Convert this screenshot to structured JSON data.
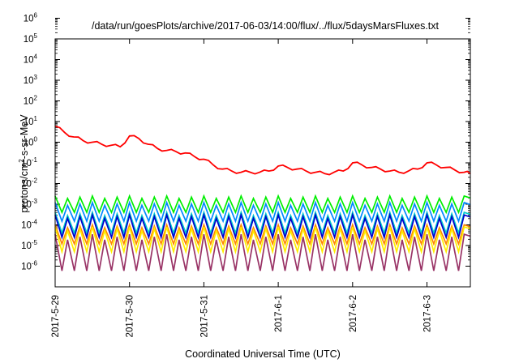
{
  "chart_data": {
    "type": "line",
    "title": "/data/run/goesPlots/archive/2017-06-03/14:00/flux/../flux/5daysMarsFluxes.txt",
    "xlabel": "Coordinated Universal Time (UTC)",
    "ylabel": {
      "prefix": "protons/cm",
      "sup": "2",
      "suffix": "-s-sr-MeV"
    },
    "y_scale": "log",
    "ylim": [
      "1e-6",
      "1e6"
    ],
    "y_ticks": [
      {
        "base": "10",
        "exp": "6"
      },
      {
        "base": "10",
        "exp": "5"
      },
      {
        "base": "10",
        "exp": "4"
      },
      {
        "base": "10",
        "exp": "3"
      },
      {
        "base": "10",
        "exp": "2"
      },
      {
        "base": "10",
        "exp": "1"
      },
      {
        "base": "10",
        "exp": "0"
      },
      {
        "base": "10",
        "exp": "-1"
      },
      {
        "base": "10",
        "exp": "-2"
      },
      {
        "base": "10",
        "exp": "-3"
      },
      {
        "base": "10",
        "exp": "-4"
      },
      {
        "base": "10",
        "exp": "-5"
      },
      {
        "base": "10",
        "exp": "-6"
      }
    ],
    "xlim": [
      "2017-05-29 00:00",
      "2017-06-03 14:00"
    ],
    "x_ticks": [
      "2017-5-29",
      "2017-5-30",
      "2017-5-31",
      "2017-6-1",
      "2017-6-2",
      "2017-6-3"
    ],
    "grid": false,
    "series": [
      {
        "color": "#ff0000",
        "x": [
          "2017-05-29 00:00",
          "2017-05-29 03:00",
          "2017-05-29 06:00",
          "2017-05-29 09:00",
          "2017-05-29 12:00",
          "2017-05-29 15:00",
          "2017-05-29 18:00",
          "2017-05-29 21:00",
          "2017-05-30 00:00",
          "2017-05-30 03:00",
          "2017-05-30 06:00",
          "2017-05-30 09:00",
          "2017-05-30 12:00",
          "2017-05-30 15:00",
          "2017-05-30 18:00",
          "2017-05-30 21:00",
          "2017-05-31 00:00",
          "2017-05-31 03:00",
          "2017-05-31 06:00",
          "2017-05-31 09:00",
          "2017-05-31 12:00",
          "2017-05-31 15:00",
          "2017-05-31 18:00",
          "2017-05-31 21:00",
          "2017-06-01 00:00",
          "2017-06-01 03:00",
          "2017-06-01 06:00",
          "2017-06-01 09:00",
          "2017-06-01 12:00",
          "2017-06-01 15:00",
          "2017-06-01 18:00",
          "2017-06-01 21:00",
          "2017-06-02 00:00",
          "2017-06-02 03:00",
          "2017-06-02 06:00",
          "2017-06-02 09:00",
          "2017-06-02 12:00",
          "2017-06-02 15:00",
          "2017-06-02 18:00",
          "2017-06-02 21:00",
          "2017-06-03 00:00",
          "2017-06-03 03:00",
          "2017-06-03 06:00",
          "2017-06-03 09:00",
          "2017-06-03 12:00",
          "2017-06-03 14:00"
        ],
        "y": [
          60,
          30,
          18,
          12,
          10,
          8,
          7,
          6,
          20,
          15,
          8,
          5,
          4,
          3.5,
          3,
          2,
          1.5,
          0.8,
          0.5,
          0.4,
          0.35,
          0.35,
          0.35,
          0.4,
          0.7,
          0.6,
          0.5,
          0.4,
          0.35,
          0.3,
          0.35,
          0.4,
          1.0,
          0.8,
          0.6,
          0.5,
          0.4,
          0.35,
          0.4,
          0.5,
          1.0,
          0.8,
          0.6,
          0.45,
          0.35,
          0.3
        ]
      },
      {
        "color": "#00ee00",
        "pattern": "daily-sawtooth",
        "period_hours": 4,
        "high": 0.025,
        "low": 0.004
      },
      {
        "color": "#0088ff",
        "pattern": "daily-sawtooth",
        "period_hours": 4,
        "high": 0.012,
        "low": 0.0015
      },
      {
        "color": "#00cccc",
        "pattern": "daily-sawtooth",
        "period_hours": 4,
        "high": 0.004,
        "low": 0.0004
      },
      {
        "color": "#0000cc",
        "pattern": "daily-sawtooth",
        "period_hours": 4,
        "high": 0.003,
        "low": 0.00025
      },
      {
        "color": "#ff8800",
        "pattern": "daily-sawtooth",
        "period_hours": 4,
        "high": 0.001,
        "low": 0.00012
      },
      {
        "color": "#ffee00",
        "pattern": "daily-sawtooth",
        "period_hours": 4,
        "high": 0.0008,
        "low": 5e-05
      },
      {
        "color": "#993366",
        "pattern": "daily-sawtooth",
        "period_hours": 4,
        "high": 0.00035,
        "low": 6e-06
      }
    ]
  }
}
